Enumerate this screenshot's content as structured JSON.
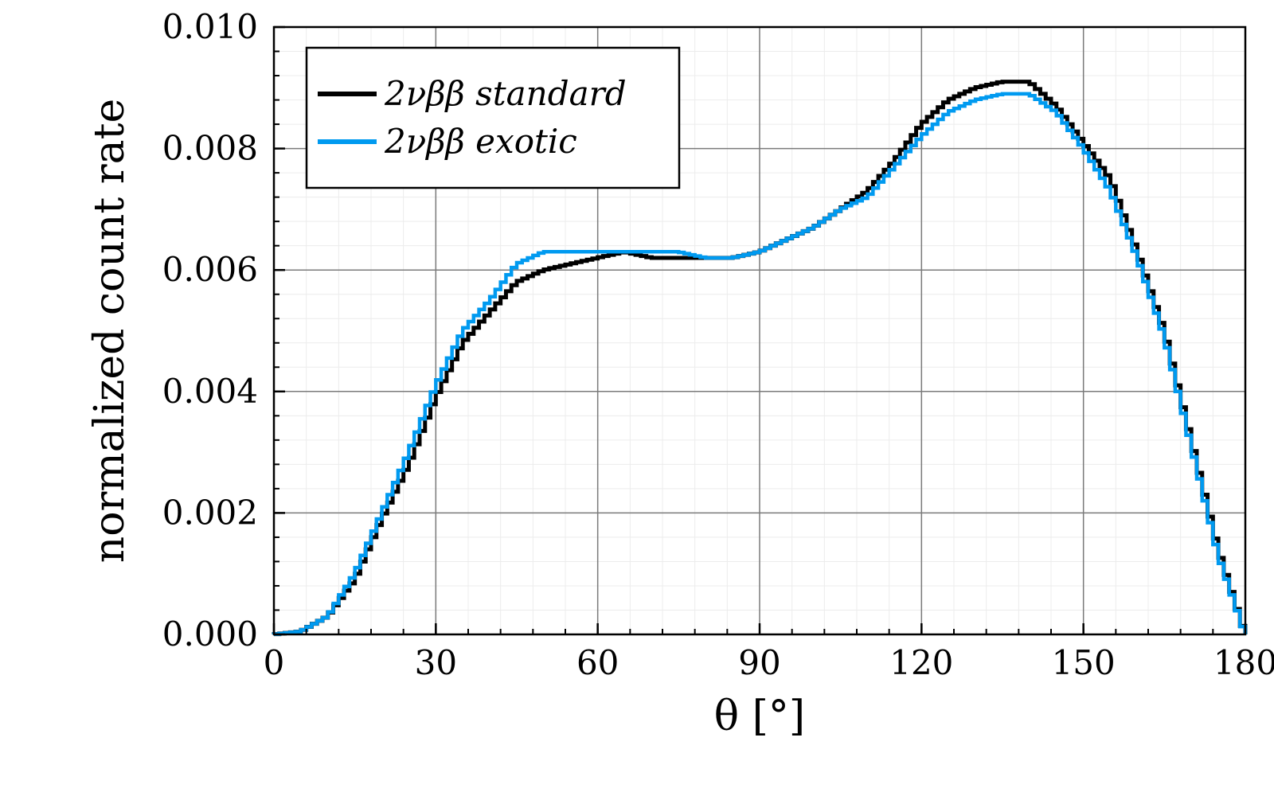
{
  "chart_data": {
    "type": "line",
    "style": "step-histogram",
    "xlabel": "θ [°]",
    "ylabel": "normalized count rate",
    "xlim": [
      0,
      180
    ],
    "ylim": [
      0,
      0.01
    ],
    "xticks": [
      0,
      30,
      60,
      90,
      120,
      150,
      180
    ],
    "xtick_labels": [
      "0",
      "30",
      "60",
      "90",
      "120",
      "150",
      "180"
    ],
    "yticks": [
      0,
      0.002,
      0.004,
      0.006,
      0.008,
      0.01
    ],
    "ytick_labels": [
      "0.000",
      "0.002",
      "0.004",
      "0.006",
      "0.008",
      "0.010"
    ],
    "grid": true,
    "minor_grid": true,
    "legend_position": "top-left",
    "bin_width": 1,
    "x": [
      0,
      5,
      10,
      15,
      20,
      25,
      30,
      35,
      40,
      45,
      50,
      55,
      60,
      65,
      70,
      75,
      80,
      85,
      90,
      95,
      100,
      105,
      110,
      115,
      120,
      125,
      130,
      135,
      140,
      145,
      150,
      155,
      160,
      165,
      170,
      175,
      180
    ],
    "series": [
      {
        "name": "2νββ standard",
        "color": "#000000",
        "values": [
          0.0,
          5e-05,
          0.0003,
          0.0009,
          0.0019,
          0.0028,
          0.0039,
          0.0048,
          0.0053,
          0.0058,
          0.006,
          0.0061,
          0.0062,
          0.0063,
          0.0062,
          0.0062,
          0.0062,
          0.0062,
          0.0063,
          0.0065,
          0.0067,
          0.007,
          0.0073,
          0.0078,
          0.0084,
          0.0088,
          0.009,
          0.0091,
          0.0091,
          0.0087,
          0.0081,
          0.0075,
          0.0063,
          0.005,
          0.0032,
          0.0014,
          0.0
        ]
      },
      {
        "name": "2νββ exotic",
        "color": "#009AF0",
        "values": [
          0.0,
          5e-05,
          0.0003,
          0.001,
          0.002,
          0.003,
          0.0041,
          0.005,
          0.0055,
          0.0061,
          0.0063,
          0.0063,
          0.0063,
          0.0063,
          0.0063,
          0.0063,
          0.0062,
          0.0062,
          0.0063,
          0.0065,
          0.0067,
          0.007,
          0.0072,
          0.0077,
          0.0082,
          0.0086,
          0.0088,
          0.0089,
          0.0089,
          0.0086,
          0.008,
          0.0073,
          0.0062,
          0.0049,
          0.0031,
          0.0013,
          0.0
        ]
      }
    ]
  }
}
